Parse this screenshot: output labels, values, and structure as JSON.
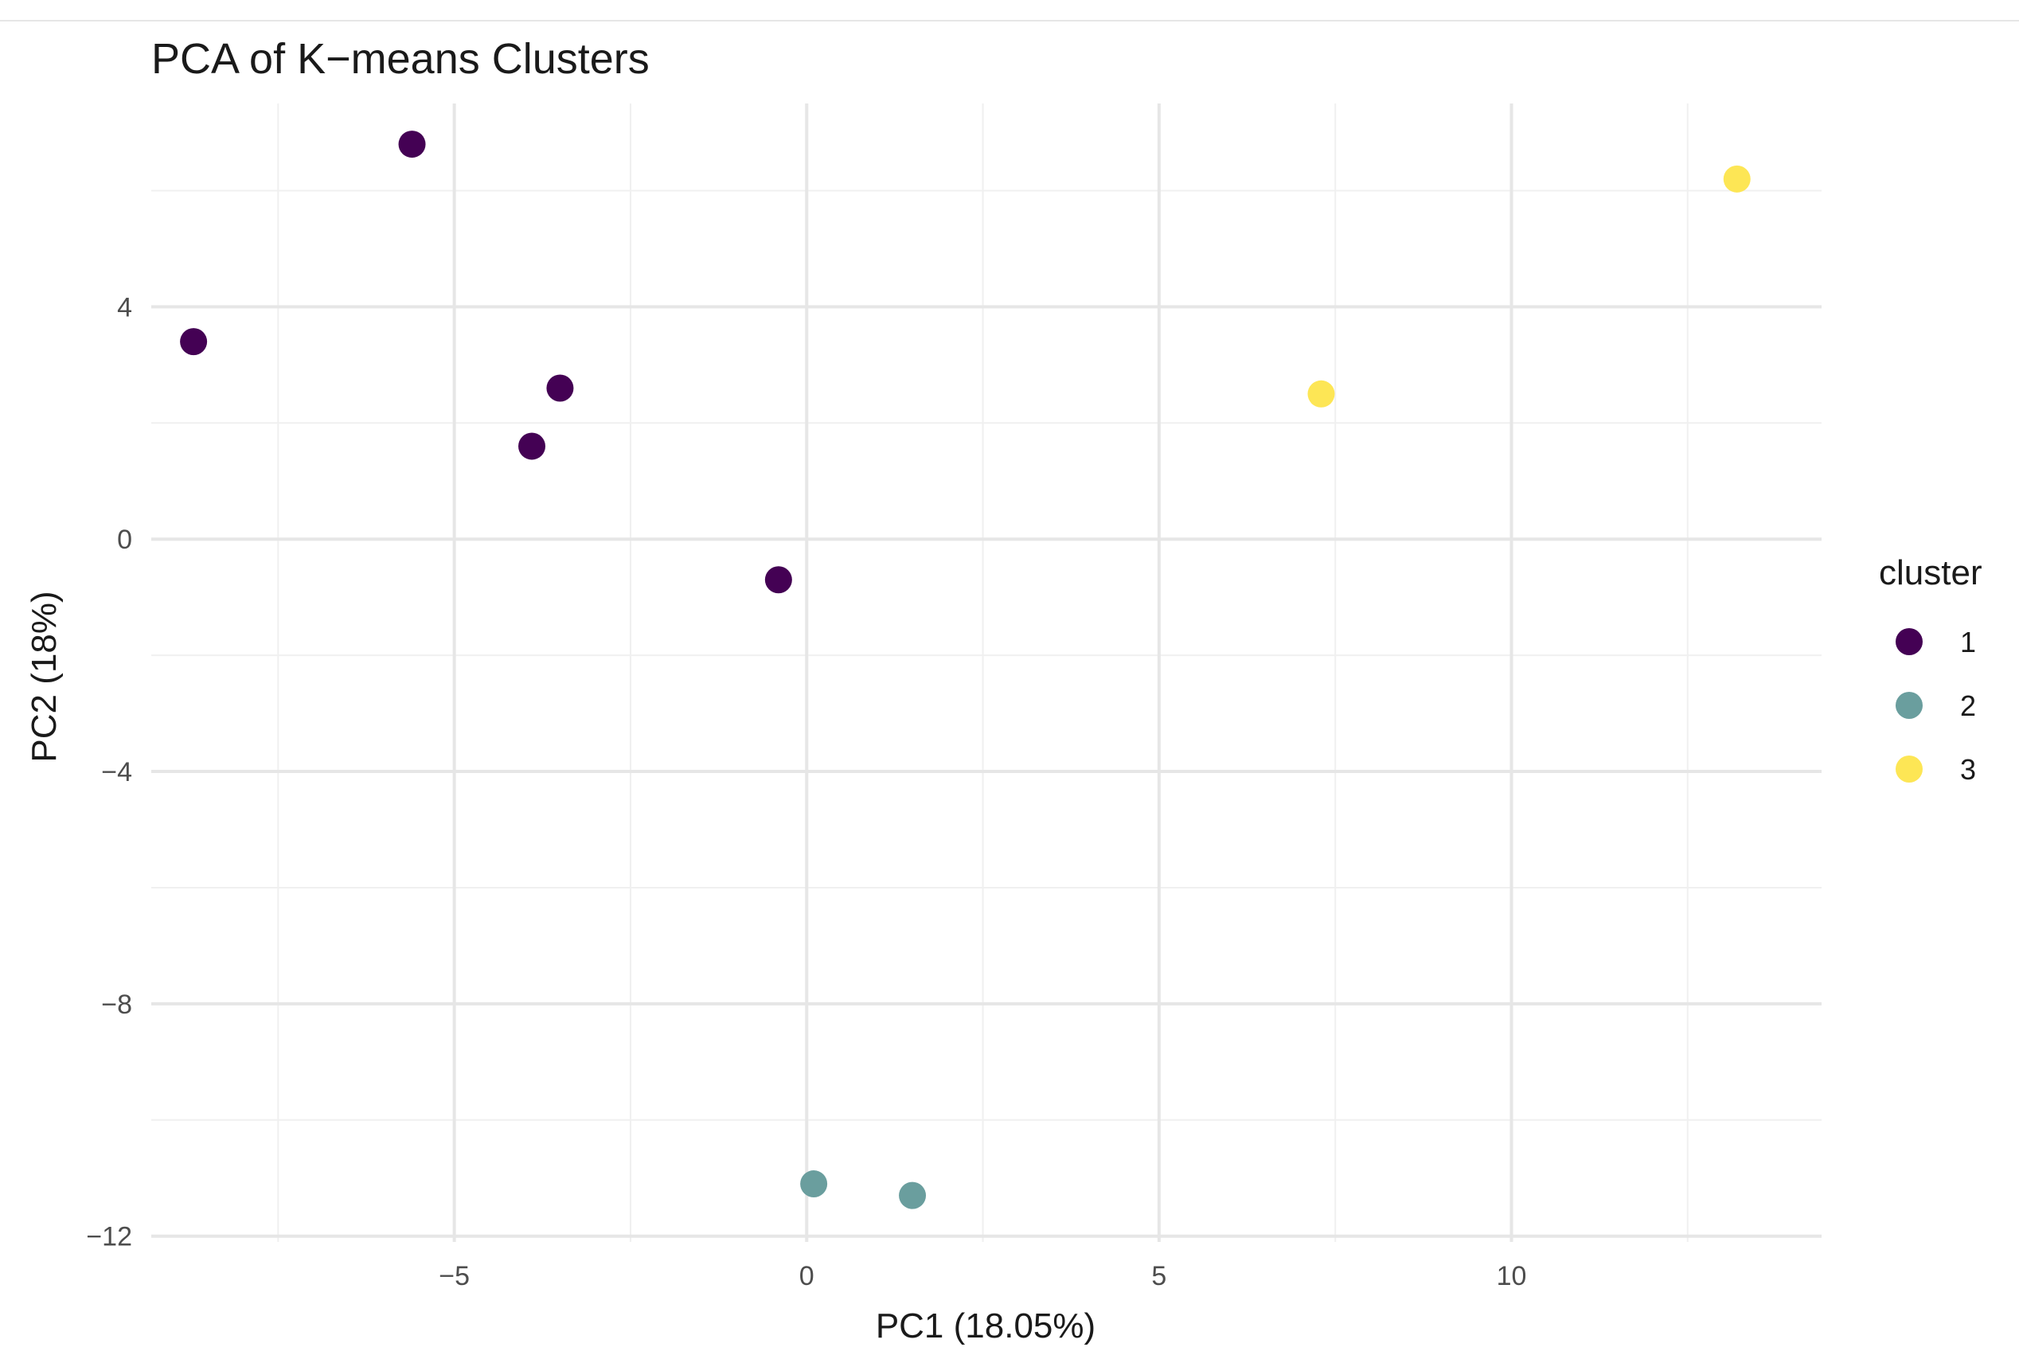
{
  "chart_data": {
    "type": "scatter",
    "title": "PCA of K−means Clusters",
    "xlabel": "PC1 (18.05%)",
    "ylabel": "PC2 (18%)",
    "xlim": [
      -9.3,
      14.4
    ],
    "ylim": [
      -12.1,
      7.5
    ],
    "x_ticks": [
      {
        "value": -5,
        "label": "−5"
      },
      {
        "value": 0,
        "label": "0"
      },
      {
        "value": 5,
        "label": "5"
      },
      {
        "value": 10,
        "label": "10"
      }
    ],
    "y_ticks": [
      {
        "value": 4,
        "label": "4"
      },
      {
        "value": 0,
        "label": "0"
      },
      {
        "value": -4,
        "label": "−4"
      },
      {
        "value": -8,
        "label": "−8"
      },
      {
        "value": -12,
        "label": "−12"
      }
    ],
    "x_minor": [
      -7.5,
      -2.5,
      2.5,
      7.5,
      12.5
    ],
    "y_minor": [
      6,
      2,
      -2,
      -6,
      -10
    ],
    "grid": true,
    "legend": {
      "title": "cluster",
      "position": "right"
    },
    "series": [
      {
        "name": "1",
        "color": "#440154",
        "x": [
          -5.6,
          -8.7,
          -3.5,
          -3.9,
          -0.4
        ],
        "y": [
          6.8,
          3.4,
          2.6,
          1.6,
          -0.7
        ]
      },
      {
        "name": "2",
        "color": "#6a9e9e",
        "x": [
          0.1,
          1.5
        ],
        "y": [
          -11.1,
          -11.3
        ]
      },
      {
        "name": "3",
        "color": "#fde655",
        "x": [
          13.2,
          7.3
        ],
        "y": [
          6.2,
          2.5
        ]
      }
    ]
  }
}
